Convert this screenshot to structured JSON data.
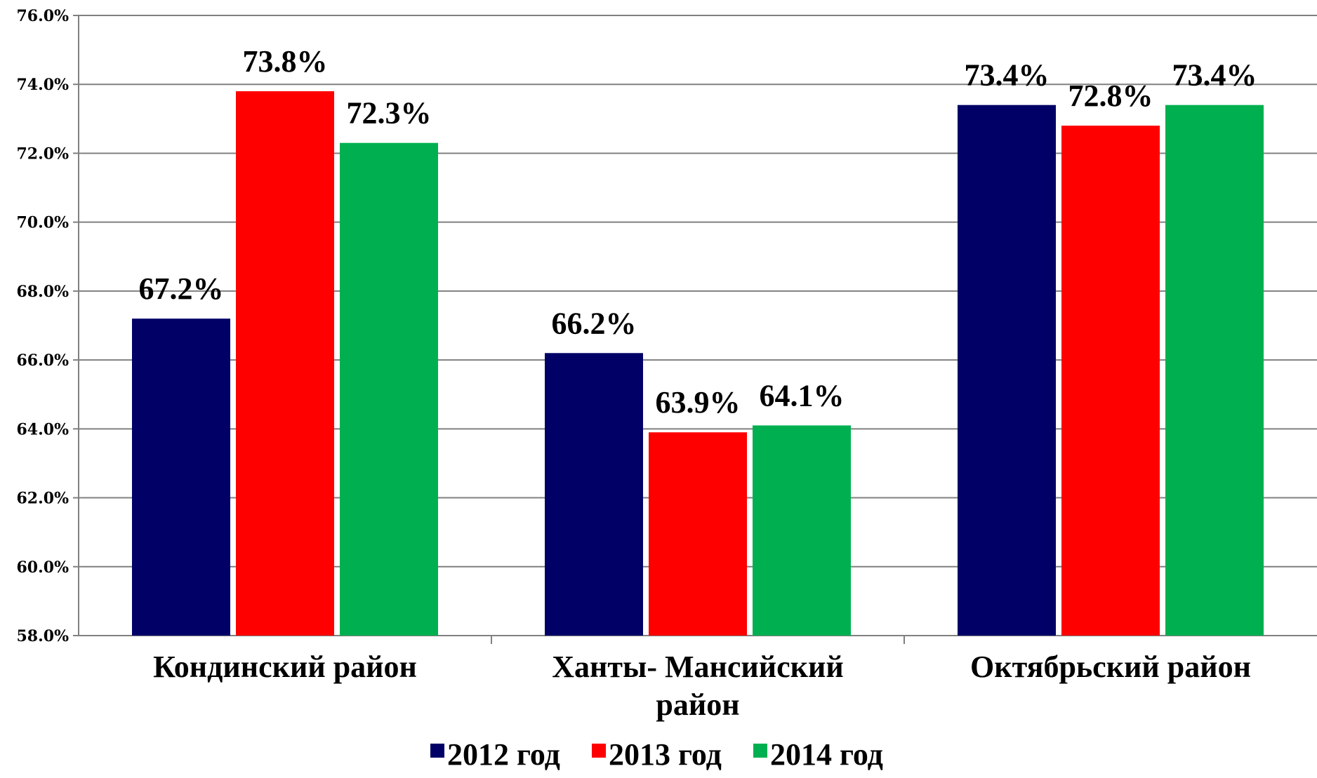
{
  "chart_data": {
    "type": "bar",
    "categories": [
      [
        "Кондинский район"
      ],
      [
        "Ханты- Мансийский",
        "район"
      ],
      [
        "Октябрьский район"
      ]
    ],
    "series": [
      {
        "name": "2012 год",
        "color": "#000066",
        "values": [
          67.2,
          66.2,
          73.4
        ],
        "labels": [
          "67.2%",
          "66.2%",
          "73.4%"
        ]
      },
      {
        "name": "2013 год",
        "color": "#ff0000",
        "values": [
          73.8,
          63.9,
          72.8
        ],
        "labels": [
          "73.8%",
          "63.9%",
          "72.8%"
        ]
      },
      {
        "name": "2014 год",
        "color": "#00b050",
        "values": [
          72.3,
          64.1,
          73.4
        ],
        "labels": [
          "72.3%",
          "64.1%",
          "73.4%"
        ]
      }
    ],
    "ylim": [
      58,
      76
    ],
    "yticks": [
      58,
      60,
      62,
      64,
      66,
      68,
      70,
      72,
      74,
      76
    ],
    "ytick_labels": [
      "58.0%",
      "60.0%",
      "62.0%",
      "64.0%",
      "66.0%",
      "68.0%",
      "70.0%",
      "72.0%",
      "74.0%",
      "76.0%"
    ],
    "grid": true,
    "legend": "bottom"
  }
}
